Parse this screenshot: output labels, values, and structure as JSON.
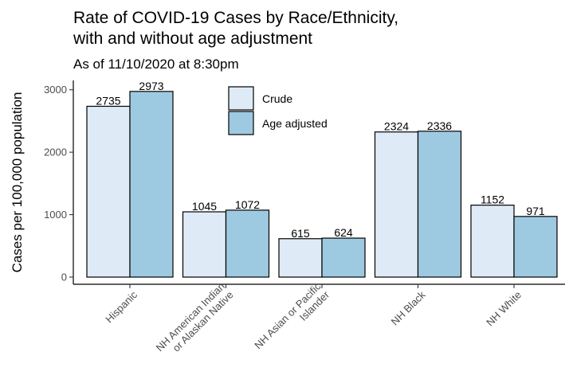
{
  "chart_data": {
    "type": "bar",
    "title": "Rate of COVID-19 Cases by Race/Ethnicity,",
    "title_line2": "with and without age adjustment",
    "subtitle": "As of 11/10/2020 at 8:30pm",
    "xlabel": "",
    "ylabel": "Cases per 100,000 population",
    "ylim": [
      0,
      3100
    ],
    "yticks": [
      0,
      1000,
      2000,
      3000
    ],
    "grid": false,
    "legend_position": "top-center",
    "categories": [
      [
        "Hispanic"
      ],
      [
        "NH American Indian",
        "or Alaskan Native"
      ],
      [
        "NH Asian or Pacific",
        "Islander"
      ],
      [
        "NH Black"
      ],
      [
        "NH White"
      ]
    ],
    "series": [
      {
        "name": "Crude",
        "color": "#deebf7",
        "values": [
          2735,
          1045,
          615,
          2324,
          1152
        ]
      },
      {
        "name": "Age adjusted",
        "color": "#9ecae1",
        "values": [
          2973,
          1072,
          624,
          2336,
          971
        ]
      }
    ]
  }
}
